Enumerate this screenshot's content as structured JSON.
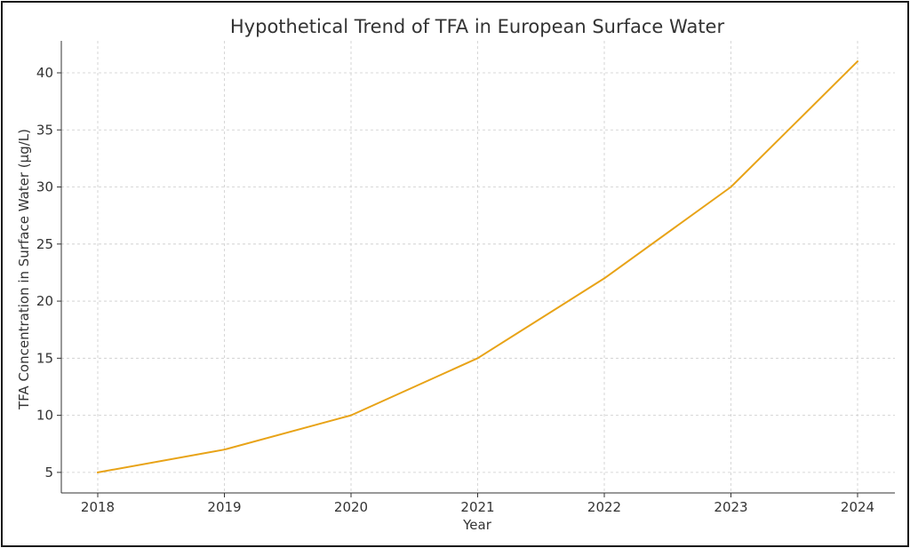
{
  "chart_data": {
    "type": "line",
    "title": "Hypothetical Trend of TFA in European Surface Water",
    "xlabel": "Year",
    "ylabel": "TFA Concentration in Surface Water (µg/L)",
    "x": [
      "2018",
      "2019",
      "2020",
      "2021",
      "2022",
      "2023",
      "2024"
    ],
    "series": [
      {
        "values": [
          5,
          7,
          10,
          15,
          22,
          30,
          41
        ],
        "color": "#e8a317"
      }
    ],
    "yticks": [
      "5",
      "10",
      "15",
      "20",
      "25",
      "30",
      "35",
      "40"
    ],
    "ylim": [
      3.2,
      42.8
    ],
    "grid": true,
    "legend": "none"
  }
}
